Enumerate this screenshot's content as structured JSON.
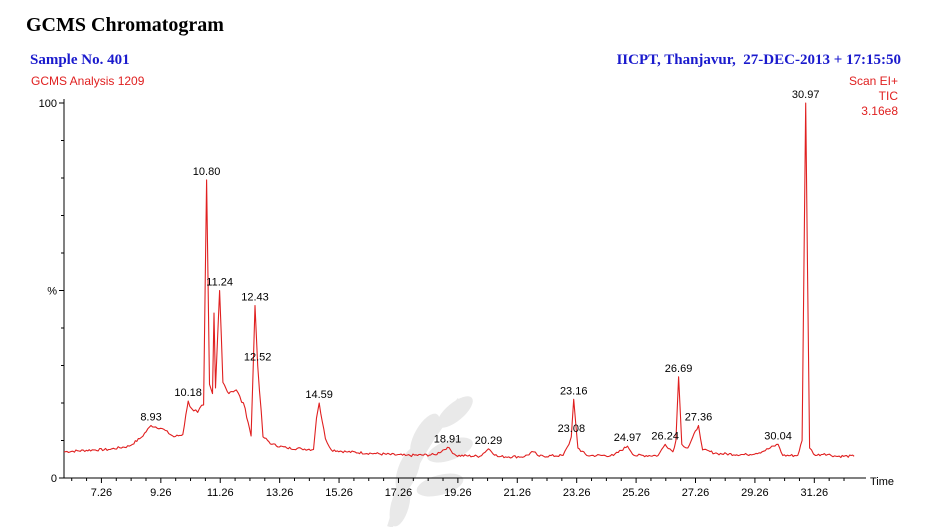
{
  "header": {
    "title": "GCMS Chromatogram",
    "sample": "Sample No. 401",
    "analysis": "GCMS Analysis 1209",
    "institute": "IICPT, Thanjavur,  27-DEC-2013 + 17:15:50",
    "scan": "Scan EI+",
    "tic": "TIC",
    "intensity": "3.16e8"
  },
  "chart_data": {
    "type": "line",
    "title": "GCMS Chromatogram",
    "xlabel": "Time",
    "ylabel": "%",
    "xlim": [
      6.0,
      33.0
    ],
    "ylim": [
      0,
      100
    ],
    "y_ticks": [
      0,
      50,
      100
    ],
    "y_tick_labels": [
      "0",
      "%",
      "100"
    ],
    "x_ticks": [
      7.26,
      9.26,
      11.26,
      13.26,
      15.26,
      17.26,
      19.26,
      21.26,
      23.26,
      25.26,
      27.26,
      29.26,
      31.26
    ],
    "x_tick_labels": [
      "7.26",
      "9.26",
      "11.26",
      "13.26",
      "15.26",
      "17.26",
      "19.26",
      "21.26",
      "23.26",
      "25.26",
      "27.26",
      "29.26",
      "31.26"
    ],
    "color": "#e02020",
    "series": [
      {
        "x": [
          6.0,
          7.0,
          7.5,
          8.2,
          8.6,
          8.93,
          9.3,
          9.7,
          10.0,
          10.15,
          10.18,
          10.3,
          10.5,
          10.7,
          10.8,
          10.9,
          11.0,
          11.05,
          11.1,
          11.24,
          11.35,
          11.5,
          11.8,
          12.1,
          12.3,
          12.43,
          12.52,
          12.7,
          13.0,
          13.5,
          14.0,
          14.4,
          14.5,
          14.59,
          14.8,
          15.0,
          15.5,
          16.5,
          17.5,
          18.5,
          18.91,
          19.2,
          20.0,
          20.29,
          20.6,
          21.5,
          21.8,
          22.0,
          22.8,
          23.0,
          23.08,
          23.16,
          23.3,
          23.6,
          24.5,
          24.97,
          25.2,
          26.0,
          26.24,
          26.5,
          26.6,
          26.69,
          26.8,
          27.0,
          27.36,
          27.5,
          28.0,
          29.0,
          29.5,
          30.04,
          30.2,
          30.7,
          30.85,
          30.97,
          31.1,
          31.3,
          31.6,
          32.0,
          32.6
        ],
        "y": [
          7.0,
          7.5,
          7.6,
          8.5,
          10.8,
          14.0,
          13.2,
          11.0,
          11.6,
          19.0,
          20.5,
          18.5,
          17.5,
          19.5,
          79.5,
          25.0,
          22.5,
          44.0,
          24.0,
          50.0,
          25.5,
          23.0,
          23.5,
          18.5,
          11.2,
          46.0,
          30.0,
          11.0,
          9.0,
          8.0,
          7.8,
          7.6,
          16.0,
          20.0,
          10.5,
          7.5,
          7.0,
          6.5,
          6.0,
          6.2,
          8.2,
          6.0,
          5.8,
          7.8,
          5.7,
          5.7,
          7.0,
          5.8,
          6.0,
          9.0,
          11.0,
          21.0,
          8.0,
          6.0,
          6.0,
          8.5,
          6.0,
          6.0,
          9.0,
          7.0,
          10.0,
          27.0,
          9.0,
          8.0,
          14.0,
          7.5,
          6.5,
          6.2,
          7.0,
          9.0,
          6.0,
          6.0,
          10.0,
          100.0,
          8.0,
          6.0,
          6.5,
          5.8,
          5.8
        ]
      }
    ],
    "peak_labels": [
      {
        "x": 8.93,
        "y": 14.0,
        "label": "8.93"
      },
      {
        "x": 10.18,
        "y": 20.5,
        "label": "10.18"
      },
      {
        "x": 10.8,
        "y": 79.5,
        "label": "10.80"
      },
      {
        "x": 11.24,
        "y": 50.0,
        "label": "11.24"
      },
      {
        "x": 12.43,
        "y": 46.0,
        "label": "12.43"
      },
      {
        "x": 12.52,
        "y": 30.0,
        "label": "12.52"
      },
      {
        "x": 14.59,
        "y": 20.0,
        "label": "14.59"
      },
      {
        "x": 18.91,
        "y": 8.2,
        "label": "18.91"
      },
      {
        "x": 20.29,
        "y": 7.8,
        "label": "20.29"
      },
      {
        "x": 23.08,
        "y": 11.0,
        "label": "23.08"
      },
      {
        "x": 23.16,
        "y": 21.0,
        "label": "23.16"
      },
      {
        "x": 24.97,
        "y": 8.5,
        "label": "24.97"
      },
      {
        "x": 26.24,
        "y": 9.0,
        "label": "26.24"
      },
      {
        "x": 26.69,
        "y": 27.0,
        "label": "26.69"
      },
      {
        "x": 27.36,
        "y": 14.0,
        "label": "27.36"
      },
      {
        "x": 30.04,
        "y": 9.0,
        "label": "30.04"
      },
      {
        "x": 30.97,
        "y": 100.0,
        "label": "30.97"
      }
    ]
  }
}
